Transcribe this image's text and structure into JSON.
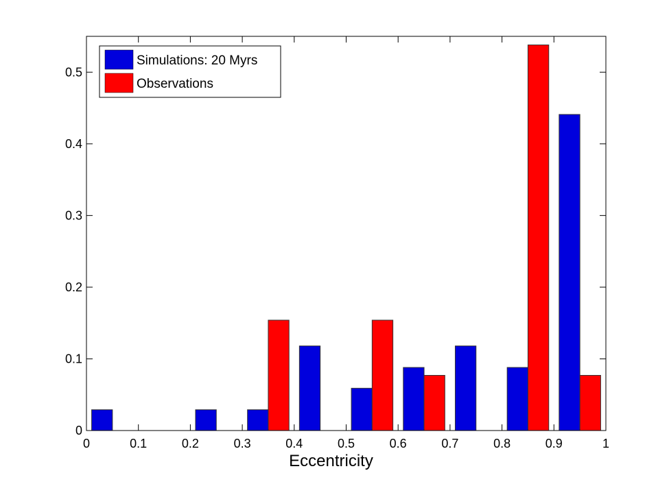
{
  "chart_data": {
    "type": "bar",
    "title": "",
    "xlabel": "Eccentricity",
    "ylabel": "",
    "xlim": [
      0,
      1
    ],
    "ylim": [
      0,
      0.55
    ],
    "xticks": [
      "0",
      "0.1",
      "0.2",
      "0.3",
      "0.4",
      "0.5",
      "0.6",
      "0.7",
      "0.8",
      "0.9",
      "1"
    ],
    "yticks": [
      "0",
      "0.1",
      "0.2",
      "0.3",
      "0.4",
      "0.5"
    ],
    "bin_centers": [
      0.05,
      0.15,
      0.25,
      0.35,
      0.45,
      0.55,
      0.65,
      0.75,
      0.85,
      0.95
    ],
    "bin_width": 0.1,
    "grid": false,
    "legend_position": "top-left",
    "series": [
      {
        "name": "Simulations: 20 Myrs",
        "color": "#0000dd",
        "values": [
          0.029,
          0,
          0.029,
          0.029,
          0.118,
          0.059,
          0.088,
          0.118,
          0.088,
          0.441
        ]
      },
      {
        "name": "Observations",
        "color": "#ff0000",
        "values": [
          0,
          0,
          0,
          0.154,
          0,
          0.154,
          0.077,
          0,
          0.538,
          0.077
        ]
      }
    ]
  }
}
